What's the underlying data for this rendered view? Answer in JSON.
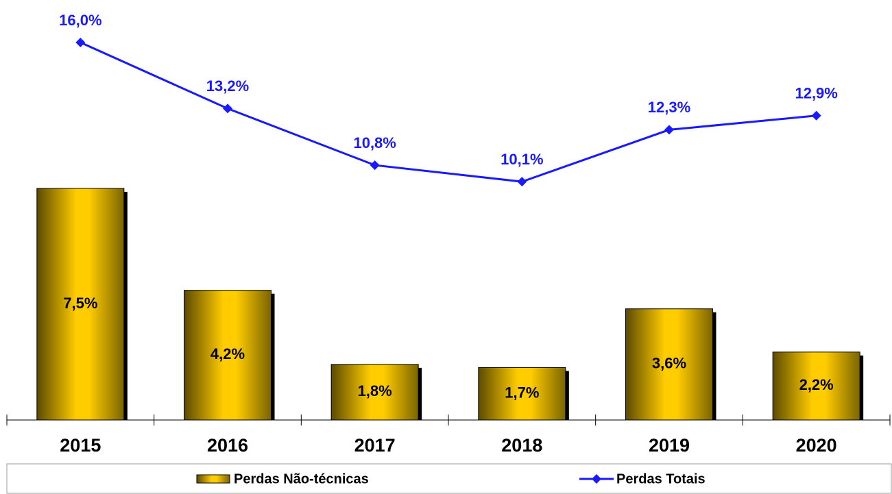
{
  "chart_data": {
    "type": "bar",
    "categories": [
      "2015",
      "2016",
      "2017",
      "2018",
      "2019",
      "2020"
    ],
    "series": [
      {
        "name": "Perdas Não-técnicas",
        "type": "bar",
        "color": "#ffcc00",
        "values": [
          7.5,
          4.2,
          1.8,
          1.7,
          3.6,
          2.2
        ],
        "value_labels": [
          "7,5%",
          "4,2%",
          "1,8%",
          "1,7%",
          "3,6%",
          "2,2%"
        ]
      },
      {
        "name": "Perdas Totais",
        "type": "line",
        "axis": "y2",
        "color": "#1a1aff",
        "values": [
          16.0,
          13.2,
          10.8,
          10.1,
          12.3,
          12.9
        ],
        "value_labels": [
          "16,0%",
          "13,2%",
          "10,8%",
          "10,1%",
          "12,3%",
          "12,9%"
        ]
      }
    ],
    "ylim": [
      0,
      13.6
    ],
    "y2lim": [
      0,
      17.8
    ],
    "legend": "bottom"
  }
}
